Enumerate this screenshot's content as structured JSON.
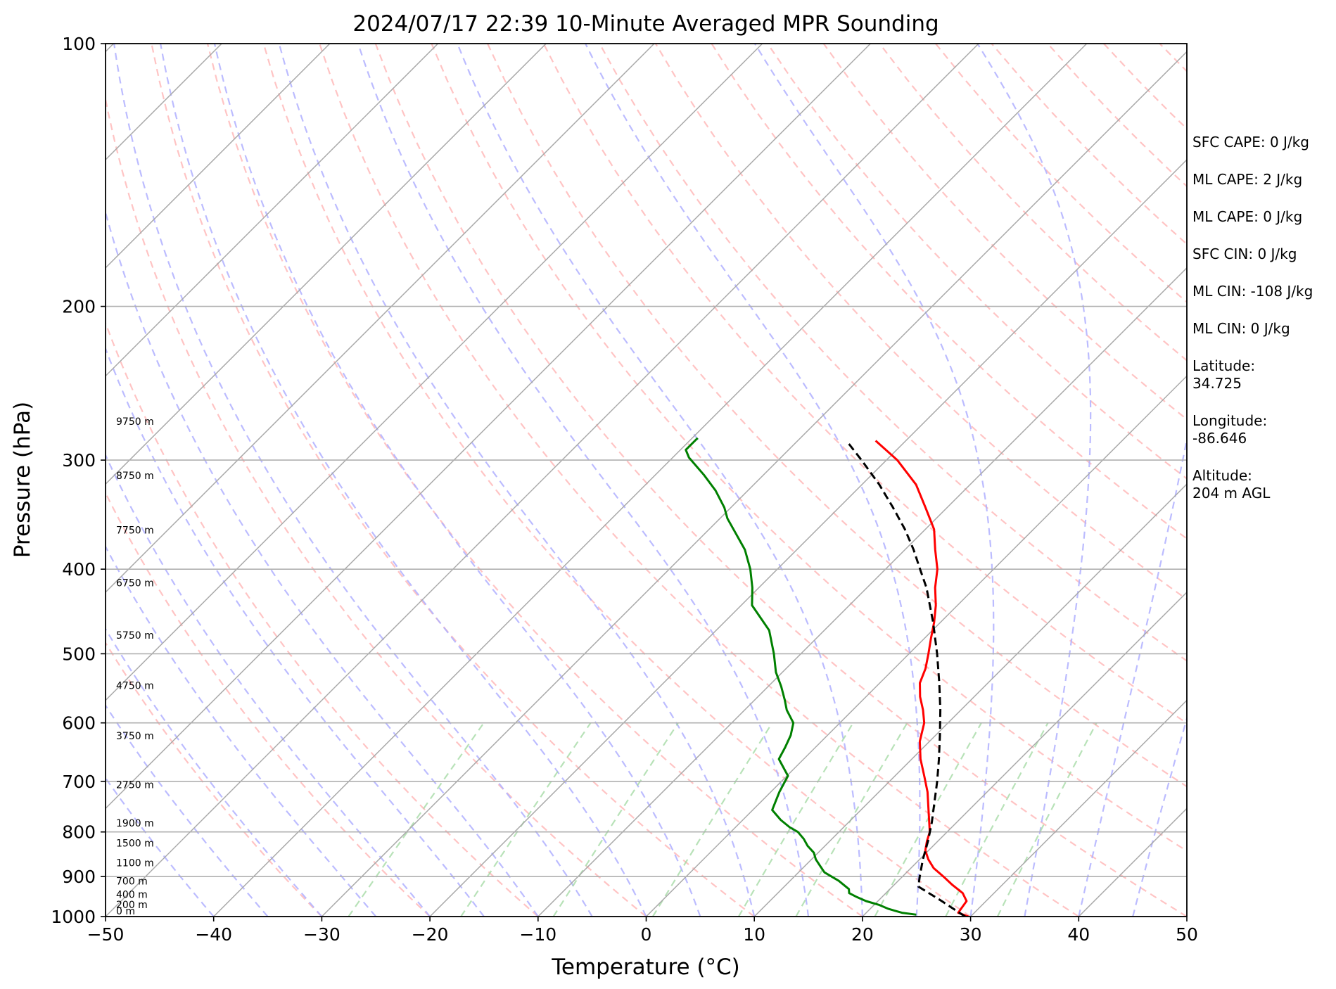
{
  "chart_data": {
    "type": "line",
    "title": "2024/07/17 22:39 10-Minute Averaged MPR Sounding",
    "xlabel": "Temperature (°C)",
    "ylabel": "Pressure (hPa)",
    "xlim": [
      -50,
      50
    ],
    "ylim": [
      1000,
      100
    ],
    "yscale": "log",
    "skew": true,
    "x_ticks": [
      "−50",
      "−40",
      "−30",
      "−20",
      "−10",
      "0",
      "10",
      "20",
      "30",
      "40",
      "50"
    ],
    "y_ticks": [
      "100",
      "200",
      "300",
      "400",
      "500",
      "600",
      "700",
      "800",
      "900",
      "1000"
    ],
    "grid": true,
    "series": [
      {
        "role": "temperature",
        "color": "#ff0000",
        "points": [
          [
            1000,
            29.8
          ],
          [
            990,
            28.5
          ],
          [
            980,
            28.4
          ],
          [
            960,
            28.2
          ],
          [
            940,
            27.1
          ],
          [
            920,
            25.4
          ],
          [
            900,
            23.8
          ],
          [
            880,
            22.1
          ],
          [
            860,
            20.8
          ],
          [
            840,
            19.7
          ],
          [
            820,
            19.0
          ],
          [
            800,
            18.4
          ],
          [
            760,
            16.5
          ],
          [
            720,
            14.5
          ],
          [
            690,
            12.7
          ],
          [
            660,
            10.8
          ],
          [
            630,
            9.1
          ],
          [
            600,
            7.8
          ],
          [
            580,
            6.5
          ],
          [
            560,
            5.0
          ],
          [
            540,
            3.7
          ],
          [
            520,
            2.9
          ],
          [
            500,
            1.8
          ],
          [
            480,
            0.6
          ],
          [
            460,
            -0.6
          ],
          [
            440,
            -2.0
          ],
          [
            420,
            -3.7
          ],
          [
            400,
            -5.2
          ],
          [
            380,
            -7.2
          ],
          [
            360,
            -9.2
          ],
          [
            340,
            -12.0
          ],
          [
            320,
            -15.0
          ],
          [
            300,
            -19.0
          ],
          [
            285,
            -22.8
          ]
        ]
      },
      {
        "role": "dewpoint",
        "color": "#008000",
        "points": [
          [
            995,
            24.8
          ],
          [
            990,
            23.3
          ],
          [
            980,
            21.7
          ],
          [
            970,
            20.5
          ],
          [
            960,
            18.9
          ],
          [
            950,
            17.7
          ],
          [
            940,
            16.6
          ],
          [
            930,
            16.2
          ],
          [
            910,
            14.5
          ],
          [
            890,
            12.4
          ],
          [
            875,
            11.4
          ],
          [
            860,
            10.4
          ],
          [
            845,
            9.6
          ],
          [
            830,
            8.4
          ],
          [
            815,
            7.4
          ],
          [
            800,
            6.2
          ],
          [
            790,
            5.0
          ],
          [
            775,
            3.5
          ],
          [
            755,
            1.8
          ],
          [
            720,
            0.8
          ],
          [
            690,
            0.1
          ],
          [
            660,
            -2.3
          ],
          [
            640,
            -2.8
          ],
          [
            620,
            -3.4
          ],
          [
            600,
            -4.3
          ],
          [
            580,
            -6.1
          ],
          [
            565,
            -7.2
          ],
          [
            545,
            -8.8
          ],
          [
            525,
            -10.6
          ],
          [
            500,
            -12.5
          ],
          [
            470,
            -15.1
          ],
          [
            440,
            -19.0
          ],
          [
            420,
            -20.6
          ],
          [
            400,
            -22.5
          ],
          [
            380,
            -24.8
          ],
          [
            365,
            -27.0
          ],
          [
            350,
            -29.3
          ],
          [
            340,
            -30.6
          ],
          [
            325,
            -33.0
          ],
          [
            312,
            -35.5
          ],
          [
            298,
            -38.5
          ],
          [
            292,
            -39.5
          ],
          [
            283,
            -39.5
          ]
        ]
      },
      {
        "role": "parcel",
        "color": "#000000",
        "dash": true,
        "points": [
          [
            1000,
            29.5
          ],
          [
            960,
            25.9
          ],
          [
            924,
            22.4
          ],
          [
            900,
            21.6
          ],
          [
            860,
            20.3
          ],
          [
            820,
            19.1
          ],
          [
            780,
            17.7
          ],
          [
            740,
            16.1
          ],
          [
            700,
            14.4
          ],
          [
            660,
            12.5
          ],
          [
            620,
            10.4
          ],
          [
            580,
            8.1
          ],
          [
            540,
            5.5
          ],
          [
            500,
            2.6
          ],
          [
            460,
            -0.7
          ],
          [
            420,
            -4.5
          ],
          [
            400,
            -6.8
          ],
          [
            380,
            -9.2
          ],
          [
            360,
            -11.9
          ],
          [
            340,
            -15.0
          ],
          [
            320,
            -18.4
          ],
          [
            300,
            -22.3
          ],
          [
            285,
            -25.5
          ]
        ]
      }
    ],
    "height_labels": [
      {
        "p": 1000,
        "text": "0 m"
      },
      {
        "p": 983,
        "text": "200 m"
      },
      {
        "p": 957,
        "text": "400 m"
      },
      {
        "p": 924,
        "text": "700 m"
      },
      {
        "p": 881,
        "text": "1100 m"
      },
      {
        "p": 836,
        "text": "1500 m"
      },
      {
        "p": 793,
        "text": "1900 m"
      },
      {
        "p": 717,
        "text": "2750 m"
      },
      {
        "p": 630,
        "text": "3750 m"
      },
      {
        "p": 552,
        "text": "4750 m"
      },
      {
        "p": 483,
        "text": "5750 m"
      },
      {
        "p": 421,
        "text": "6750 m"
      },
      {
        "p": 366,
        "text": "7750 m"
      },
      {
        "p": 317,
        "text": "8750 m"
      },
      {
        "p": 275,
        "text": "9750 m"
      }
    ],
    "annotations": [
      "SFC CAPE: 0 J/kg",
      "ML CAPE: 2 J/kg",
      "ML CAPE: 0 J/kg",
      "SFC CIN: 0 J/kg",
      "ML CIN: -108 J/kg",
      "ML CIN: 0 J/kg",
      "Latitude:\n34.725",
      "Longitude:\n-86.646",
      "Altitude:\n204 m AGL"
    ],
    "reference_lines": {
      "isotherms_color": "#a9a9a9",
      "dry_adiabats_color": "#ffb0b0",
      "moist_adiabats_color": "#b0b0ff",
      "mixing_ratio_color": "#a0d8a0"
    }
  }
}
